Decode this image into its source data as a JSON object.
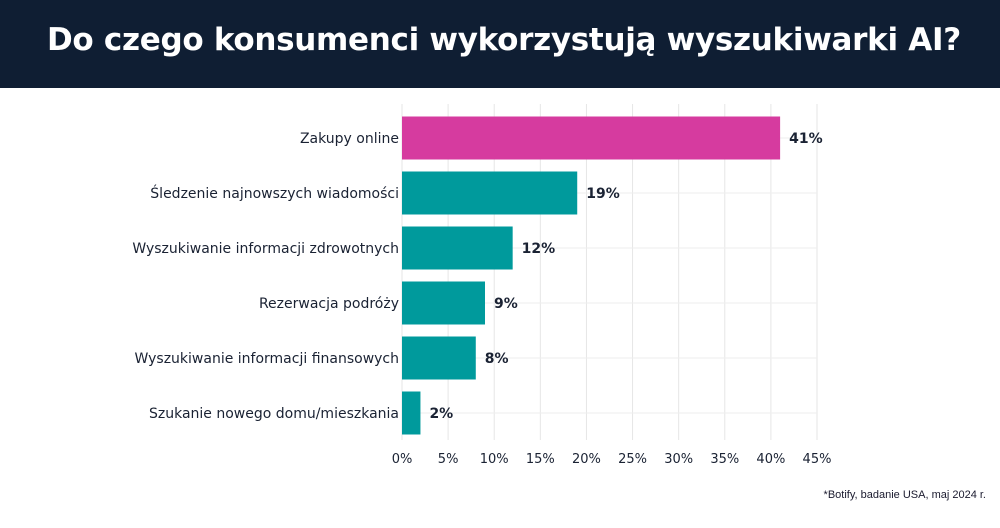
{
  "title": "Do czego konsumenci wykorzystują wyszukiwarki AI?",
  "footnote": "*Botify, badanie USA, maj 2024 r.",
  "colors": {
    "header_bg": "#0f1e33",
    "highlight_bar": "#d63b9f",
    "bar": "#009a9c",
    "label_text": "#1a2233",
    "grid": "#e6e6e6"
  },
  "chart_data": {
    "type": "bar",
    "orientation": "horizontal",
    "categories": [
      "Zakupy online",
      "Śledzenie najnowszych wiadomości",
      "Wyszukiwanie informacji zdrowotnych",
      "Rezerwacja podróży",
      "Wyszukiwanie informacji finansowych",
      "Szukanie nowego domu/mieszkania"
    ],
    "values": [
      41,
      19,
      12,
      9,
      8,
      2
    ],
    "value_labels": [
      "41%",
      "19%",
      "12%",
      "9%",
      "8%",
      "2%"
    ],
    "highlight_index": 0,
    "xlim": [
      0,
      45
    ],
    "xticks": [
      0,
      5,
      10,
      15,
      20,
      25,
      30,
      35,
      40,
      45
    ],
    "xtick_labels": [
      "0%",
      "5%",
      "10%",
      "15%",
      "20%",
      "25%",
      "30%",
      "35%",
      "40%",
      "45%"
    ],
    "grid": true
  }
}
